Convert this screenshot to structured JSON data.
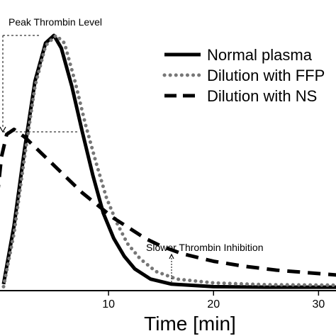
{
  "chart_data": {
    "type": "line",
    "xlabel": "Time [min]",
    "xlim": [
      0,
      32
    ],
    "ylim": [
      0,
      1.0
    ],
    "x_ticks": [
      10,
      20,
      30
    ],
    "legend": {
      "position": "top-right"
    },
    "series": [
      {
        "name": "Normal plasma",
        "style": "solid",
        "color": "#000000",
        "points": [
          [
            0,
            0.02
          ],
          [
            1,
            0.25
          ],
          [
            2,
            0.55
          ],
          [
            3,
            0.82
          ],
          [
            4,
            0.97
          ],
          [
            4.8,
            1.0
          ],
          [
            5.5,
            0.95
          ],
          [
            6.5,
            0.8
          ],
          [
            7.5,
            0.62
          ],
          [
            8.5,
            0.45
          ],
          [
            9.5,
            0.3
          ],
          [
            10.5,
            0.2
          ],
          [
            11.5,
            0.13
          ],
          [
            12.5,
            0.08
          ],
          [
            14,
            0.04
          ],
          [
            16,
            0.02
          ],
          [
            20,
            0.01
          ],
          [
            25,
            0.008
          ],
          [
            32,
            0.008
          ]
        ]
      },
      {
        "name": "Dilution with FFP",
        "style": "dotted",
        "color": "#777777",
        "points": [
          [
            0,
            0.01
          ],
          [
            1,
            0.22
          ],
          [
            2,
            0.52
          ],
          [
            3,
            0.8
          ],
          [
            4,
            0.96
          ],
          [
            5,
            1.0
          ],
          [
            5.8,
            0.97
          ],
          [
            6.8,
            0.82
          ],
          [
            7.8,
            0.65
          ],
          [
            8.8,
            0.5
          ],
          [
            9.8,
            0.36
          ],
          [
            10.8,
            0.26
          ],
          [
            11.8,
            0.18
          ],
          [
            13,
            0.12
          ],
          [
            14.5,
            0.07
          ],
          [
            16.5,
            0.04
          ],
          [
            20,
            0.025
          ],
          [
            25,
            0.018
          ],
          [
            32,
            0.016
          ]
        ]
      },
      {
        "name": "Dilution with NS",
        "style": "dashed",
        "color": "#000000",
        "points": [
          [
            -1.5,
            0.04
          ],
          [
            -0.8,
            0.28
          ],
          [
            -0.2,
            0.52
          ],
          [
            0.3,
            0.61
          ],
          [
            1,
            0.63
          ],
          [
            2,
            0.6
          ],
          [
            3,
            0.56
          ],
          [
            4.5,
            0.5
          ],
          [
            6,
            0.44
          ],
          [
            7.5,
            0.38
          ],
          [
            9,
            0.33
          ],
          [
            10.5,
            0.28
          ],
          [
            12,
            0.24
          ],
          [
            13.5,
            0.2
          ],
          [
            15,
            0.17
          ],
          [
            17,
            0.14
          ],
          [
            20,
            0.11
          ],
          [
            23,
            0.09
          ],
          [
            26,
            0.075
          ],
          [
            29,
            0.065
          ],
          [
            32,
            0.055
          ]
        ]
      }
    ],
    "annotations": [
      {
        "text": "Peak Thrombin Level"
      },
      {
        "text": "Slower Thrombin Inhibition"
      }
    ]
  }
}
